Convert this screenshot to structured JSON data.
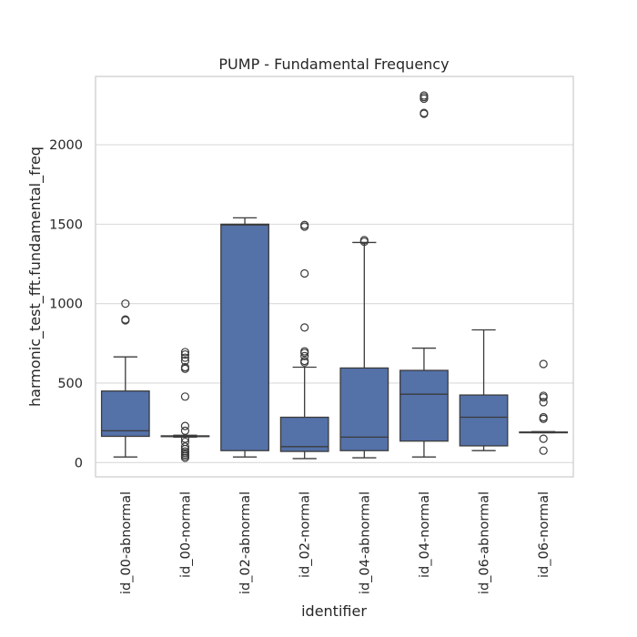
{
  "chart_data": {
    "type": "box",
    "title": "PUMP - Fundamental Frequency",
    "xlabel": "identifier",
    "ylabel": "harmonic_test_fft.fundamental_freq",
    "ylim": [
      -90,
      2430
    ],
    "yticks": [
      0,
      500,
      1000,
      1500,
      2000
    ],
    "grid": true,
    "box_color": "#5471a8",
    "edge_color": "#3b3b3b",
    "grid_color": "#d9d9d9",
    "categories": [
      "id_00-abnormal",
      "id_00-normal",
      "id_02-abnormal",
      "id_02-normal",
      "id_04-abnormal",
      "id_04-normal",
      "id_06-abnormal",
      "id_06-normal"
    ],
    "boxes": [
      {
        "category": "id_00-abnormal",
        "whisker_low": 35,
        "q1": 165,
        "median": 200,
        "q3": 450,
        "whisker_high": 665,
        "outliers": [
          900,
          895,
          1000
        ]
      },
      {
        "category": "id_00-normal",
        "whisker_low": 160,
        "q1": 165,
        "median": 165,
        "q3": 168,
        "whisker_high": 172,
        "outliers": [
          30,
          40,
          50,
          60,
          70,
          85,
          100,
          130,
          150,
          200,
          230,
          415,
          590,
          600,
          640,
          660,
          680,
          695
        ]
      },
      {
        "category": "id_02-abnormal",
        "whisker_low": 35,
        "q1": 75,
        "median": 1495,
        "q3": 1500,
        "whisker_high": 1540,
        "outliers": []
      },
      {
        "category": "id_02-normal",
        "whisker_low": 25,
        "q1": 70,
        "median": 100,
        "q3": 285,
        "whisker_high": 600,
        "outliers": [
          630,
          640,
          670,
          690,
          700,
          850,
          1190,
          1485,
          1495
        ]
      },
      {
        "category": "id_04-abnormal",
        "whisker_low": 30,
        "q1": 75,
        "median": 160,
        "q3": 595,
        "whisker_high": 1385,
        "outliers": [
          1390,
          1400
        ]
      },
      {
        "category": "id_04-normal",
        "whisker_low": 35,
        "q1": 135,
        "median": 430,
        "q3": 580,
        "whisker_high": 720,
        "outliers": [
          2195,
          2200,
          2290,
          2300,
          2310
        ]
      },
      {
        "category": "id_06-abnormal",
        "whisker_low": 75,
        "q1": 105,
        "median": 285,
        "q3": 425,
        "whisker_high": 835,
        "outliers": []
      },
      {
        "category": "id_06-normal",
        "whisker_low": 188,
        "q1": 188,
        "median": 190,
        "q3": 192,
        "whisker_high": 195,
        "outliers": [
          75,
          150,
          275,
          285,
          380,
          410,
          420,
          620
        ]
      }
    ]
  }
}
